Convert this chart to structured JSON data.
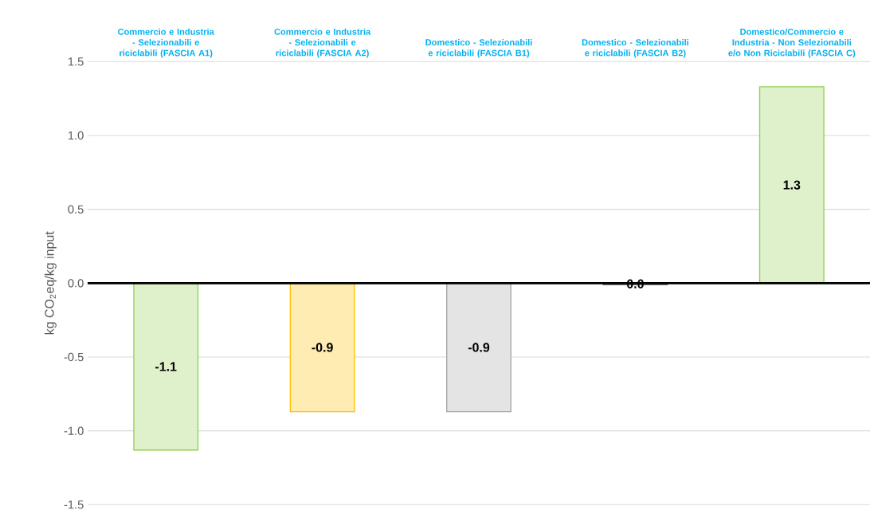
{
  "chart_data": {
    "type": "bar",
    "ylabel": "kg CO$_{2}$eq/kg input",
    "categories": [
      "Commercio e Industria - Selezionabili e riciclabili (FASCIA A1)",
      "Commercio e Industria - Selezionabili e riciclabili (FASCIA A2)",
      "Domestico - Selezionabili e riciclabili (FASCIA B1)",
      "Domestico - Selezionabili e riciclabili (FASCIA B2)",
      "Domestico/Commercio e Industria - Non Selezionabili e/o Non Riciclabili (FASCIA C)"
    ],
    "values": [
      -1.13,
      -0.87,
      -0.87,
      -0.01,
      1.33
    ],
    "colors": [
      "#92d050",
      "#ffc000",
      "#a5a5a5",
      "#404040",
      "#92d050"
    ],
    "value_labels": [
      "-1.1",
      "-0.9",
      "-0.9",
      "0.0",
      "1.3"
    ],
    "ylim": [
      -1.5,
      1.5
    ],
    "yticks": [
      -1.5,
      {
        "value": -1,
        "label": "-1.0"
      },
      -0.5,
      {
        "value": 0,
        "label": "0.0"
      },
      0.5,
      {
        "value": 1,
        "label": "1.0"
      },
      1.5
    ],
    "grid": "y"
  }
}
